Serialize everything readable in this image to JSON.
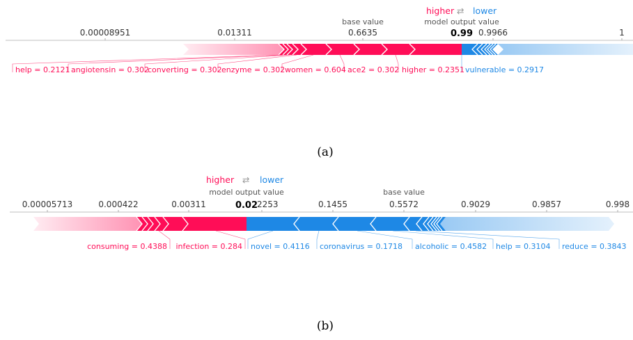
{
  "colors": {
    "positive": "#ff0d57",
    "positive_light": "#ffc3d5",
    "negative": "#1e88e5",
    "negative_light": "#d1e6fa",
    "text": "#333333"
  },
  "legend": {
    "higher": "higher",
    "arrows": "⇄",
    "lower": "lower",
    "model_output_value": "model output value",
    "base_value": "base value"
  },
  "chart_data": [
    {
      "type": "force",
      "caption": "(a)",
      "ticks": [
        "0.00008951",
        "0.01311",
        "0.6635",
        "0.9966",
        "1"
      ],
      "base_value": 0.6635,
      "output_value": 0.99,
      "output_label": "0.99",
      "features_higher": [
        {
          "label": "help = 0.2121"
        },
        {
          "label": "angiotensin = 0.302"
        },
        {
          "label": "converting = 0.302"
        },
        {
          "label": "enzyme = 0.302"
        },
        {
          "label": "women = 0.604"
        },
        {
          "label": "ace2 = 0.302"
        },
        {
          "label": "higher = 0.2351"
        }
      ],
      "features_lower": [
        {
          "label": "vulnerable = 0.2917"
        }
      ]
    },
    {
      "type": "force",
      "caption": "(b)",
      "ticks": [
        "0.00005713",
        "0.000422",
        "0.00311",
        "0.02",
        "2253",
        "0.1455",
        "0.5572",
        "0.9029",
        "0.9857",
        "0.998"
      ],
      "base_value": 0.5572,
      "output_value": 0.02,
      "output_label": "0.02",
      "features_higher": [
        {
          "label": "consuming = 0.4388"
        },
        {
          "label": "infection = 0.284"
        }
      ],
      "features_lower": [
        {
          "label": "novel = 0.4116"
        },
        {
          "label": "coronavirus = 0.1718"
        },
        {
          "label": "alcoholic = 0.4582"
        },
        {
          "label": "help = 0.3104"
        },
        {
          "label": "reduce = 0.3843"
        }
      ]
    }
  ]
}
